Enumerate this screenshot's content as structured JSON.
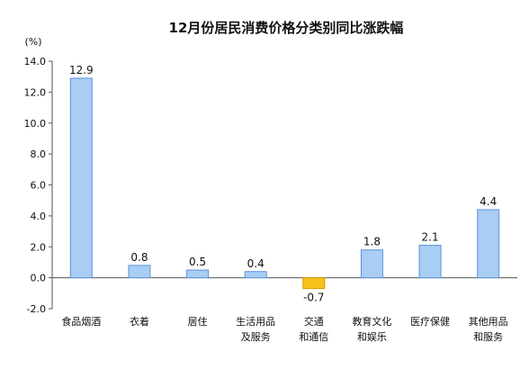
{
  "chart_data": {
    "type": "bar",
    "title": "12月份居民消费价格分类别同比涨跌幅",
    "ylabel": "(%)",
    "xlabel": "",
    "ylim": [
      -2.0,
      14.0
    ],
    "yticks": [
      "14.0",
      "12.0",
      "10.0",
      "8.0",
      "6.0",
      "4.0",
      "2.0",
      "0.0",
      "-2.0"
    ],
    "ytick_values": [
      14,
      12,
      10,
      8,
      6,
      4,
      2,
      0,
      -2
    ],
    "categories": [
      [
        "食品烟酒"
      ],
      [
        "衣着"
      ],
      [
        "居住"
      ],
      [
        "生活用品",
        "及服务"
      ],
      [
        "交通",
        "和通信"
      ],
      [
        "教育文化",
        "和娱乐"
      ],
      [
        "医疗保健"
      ],
      [
        "其他用品",
        "和服务"
      ]
    ],
    "values": [
      12.9,
      0.8,
      0.5,
      0.4,
      -0.7,
      1.8,
      2.1,
      4.4
    ],
    "value_labels": [
      "12.9",
      "0.8",
      "0.5",
      "0.4",
      "-0.7",
      "1.8",
      "2.1",
      "4.4"
    ],
    "grid": false,
    "legend": "none",
    "colors": {
      "positive": "#a9cdf5",
      "positive_stroke": "#5b93d6",
      "negative": "#f7c21a",
      "negative_stroke": "#d49a00",
      "axis": "#555555"
    }
  }
}
